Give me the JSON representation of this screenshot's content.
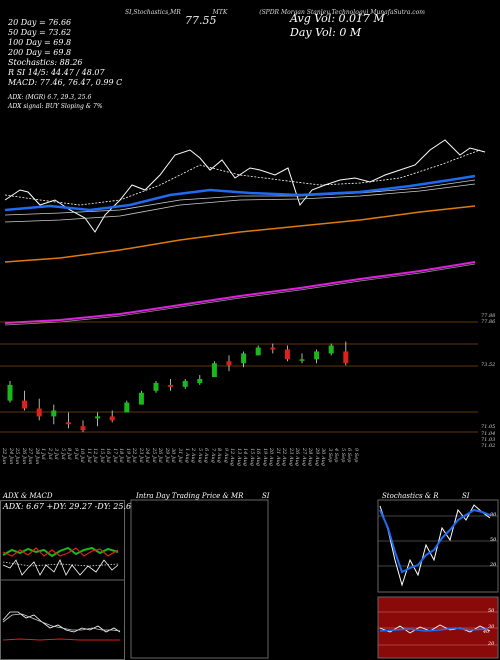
{
  "header": {
    "line1_left": "MTK EMA,Ichimoku,ADX,MACD,R SI,Stochastics,MR SI Charts MTK (SPDR Morgan Stanley Technology) ...",
    "line1_short": "SI,Stochastics,MR",
    "ticker": "MTK",
    "name": "(SPDR Morgan Stanley Technology) MunafaSutra.com",
    "last_price": "77.55",
    "avg_vol": "Avg Vol: 0.017 M",
    "day_vol": "Day Vol: 0 M",
    "stats": [
      "20 Day = 76.66",
      "50 Day = 73.62",
      "100 Day = 69.8",
      "200 Day = 69.8",
      "Stochastics: 88.26",
      "R SI 14/5: 44.47 / 48.07",
      "MACD: 77.46, 76.47, 0.99 C",
      "",
      "ADX:                 (MGR) 6.7, 29.3, 25.6",
      "ADX signal:               BUY Sloping & 7%"
    ]
  },
  "price_axis": [
    "77.88",
    "77.86",
    "73.52",
    "71.05",
    "71.04",
    "71.03",
    "71.02"
  ],
  "dates": [
    "22 Jun",
    "24 Jun",
    "25 Jun",
    "26 Jun",
    "27 Jun",
    "28 Jun",
    "1 Jul",
    "2 Jul",
    "3 Jul",
    "5 Jul",
    "8 Jul",
    "9 Jul",
    "10 Jul",
    "11 Jul",
    "12 Jul",
    "15 Jul",
    "16 Jul",
    "17 Jul",
    "18 Jul",
    "19 Jul",
    "22 Jul",
    "23 Jul",
    "24 Jul",
    "25 Jul",
    "26 Jul",
    "29 Jul",
    "30 Jul",
    "31 Jul",
    "1 Aug",
    "2 Aug",
    "5 Aug",
    "6 Aug",
    "7 Aug",
    "8 Aug",
    "9 Aug",
    "12 Aug",
    "13 Aug",
    "14 Aug",
    "15 Aug",
    "16 Aug",
    "19 Aug",
    "20 Aug",
    "21 Aug",
    "22 Aug",
    "23 Aug",
    "26 Aug",
    "27 Aug",
    "28 Aug",
    "29 Aug",
    "30 Aug",
    "3 Sep",
    "4 Sep",
    "5 Sep",
    "6 Sep",
    "9 Sep"
  ],
  "panels": {
    "adx_title": "ADX & MACD",
    "adx_values": "ADX: 6.67  +DY: 29.27  -DY: 25.61",
    "intra_title": "Intra Day Trading Price & MR",
    "intra_si": "SI",
    "stoch_title": "Stochastics & R",
    "stoch_si": "SI",
    "stoch_levels": [
      "80",
      "50",
      "20"
    ],
    "mrsi_levels": [
      "50",
      "30",
      "20"
    ],
    "mrsi_value": "40"
  },
  "colors": {
    "up": "#1ab81a",
    "down": "#e0201a",
    "ema20": "#ffffff",
    "ema50": "#1e6af0",
    "ema100": "#e07a10",
    "ema200": "#e020e0",
    "stoch_bg": "#000000",
    "mrsi_bg": "#8a0a0a"
  },
  "chart_data": {
    "type": "line",
    "title": "MTK (SPDR Morgan Stanley Technology)",
    "y_axis_ticks": [
      "77.88",
      "77.86",
      "73.52",
      "71.05",
      "71.04",
      "71.03",
      "71.02"
    ],
    "candles_ohlc": [
      [
        72.4,
        73.4,
        72.3,
        73.2
      ],
      [
        72.4,
        72.9,
        71.9,
        72.0
      ],
      [
        72.0,
        72.5,
        71.4,
        71.6
      ],
      [
        71.6,
        72.2,
        71.2,
        71.9
      ],
      [
        71.3,
        71.8,
        71.0,
        71.2
      ],
      [
        71.1,
        71.4,
        70.8,
        70.9
      ],
      [
        71.5,
        71.8,
        71.1,
        71.6
      ],
      [
        71.6,
        71.9,
        71.3,
        71.4
      ],
      [
        71.8,
        72.4,
        71.8,
        72.3
      ],
      [
        72.2,
        72.9,
        72.2,
        72.8
      ],
      [
        72.9,
        73.4,
        72.8,
        73.3
      ],
      [
        73.2,
        73.5,
        72.9,
        73.1
      ],
      [
        73.1,
        73.5,
        73.0,
        73.4
      ],
      [
        73.3,
        73.7,
        73.2,
        73.5
      ],
      [
        73.6,
        74.4,
        73.6,
        74.3
      ],
      [
        74.4,
        74.7,
        73.9,
        74.2
      ],
      [
        74.3,
        74.9,
        74.1,
        74.8
      ],
      [
        74.7,
        75.2,
        74.7,
        75.1
      ],
      [
        75.1,
        75.3,
        74.8,
        75.0
      ],
      [
        75.0,
        75.2,
        74.4,
        74.5
      ],
      [
        74.5,
        74.8,
        74.3,
        74.5
      ],
      [
        74.5,
        75.0,
        74.3,
        74.9
      ],
      [
        74.8,
        75.3,
        74.7,
        75.2
      ],
      [
        74.9,
        75.4,
        74.2,
        74.3
      ]
    ],
    "series": [
      {
        "name": "20 Day",
        "values": [
          76.66
        ]
      },
      {
        "name": "50 Day",
        "values": [
          73.62
        ]
      },
      {
        "name": "100 Day",
        "values": [
          69.8
        ]
      },
      {
        "name": "200 Day",
        "values": [
          69.8
        ]
      }
    ]
  }
}
